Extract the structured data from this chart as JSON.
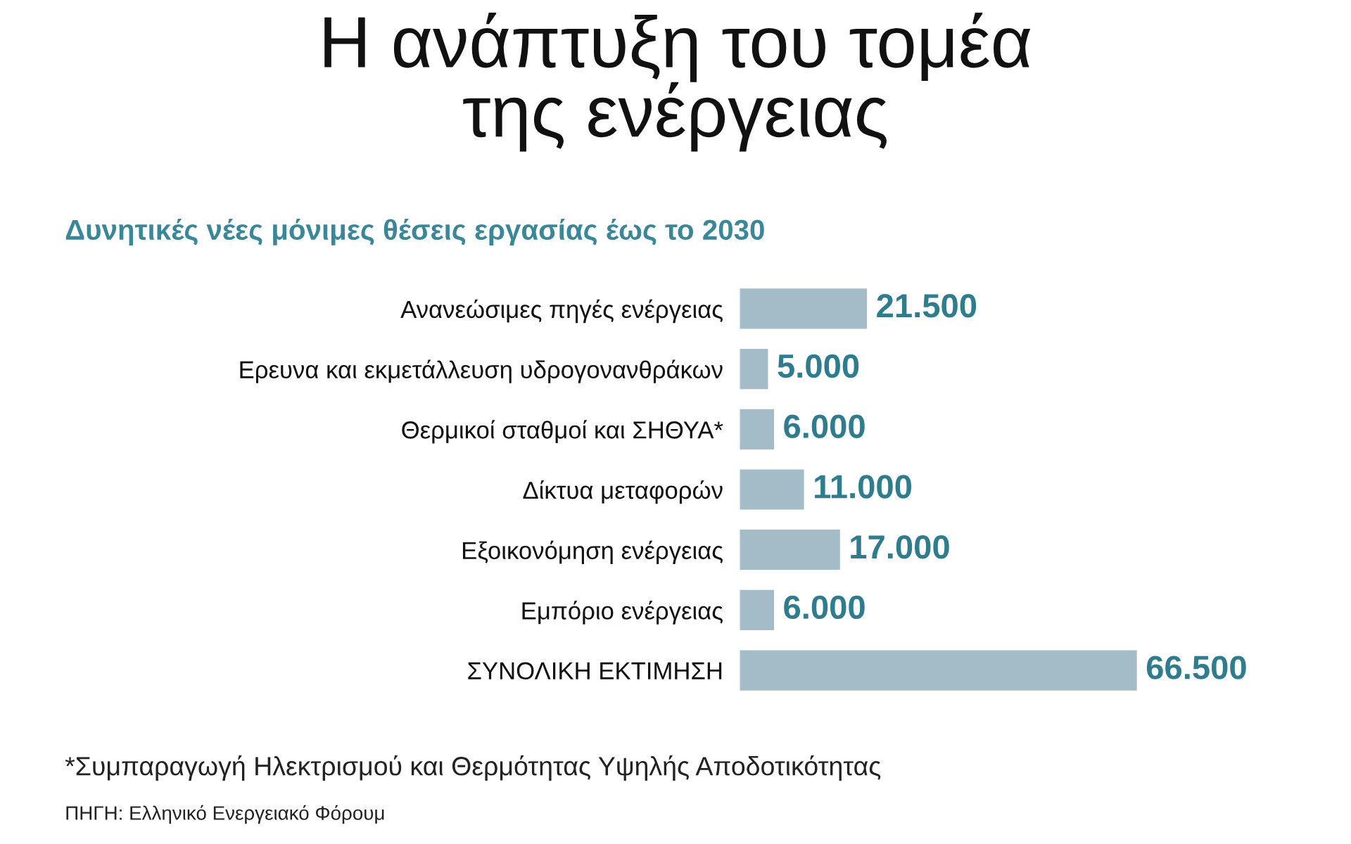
{
  "chart_data": {
    "type": "bar",
    "orientation": "horizontal",
    "title": "Η ανάπτυξη του τομέα\nτης ενέργειας",
    "subtitle": "Δυνητικές νέες μόνιμες θέσεις εργασίας έως το 2030",
    "categories": [
      "Ανανεώσιμες πηγές ενέργειας",
      "Ερευνα και εκμετάλλευση υδρογονανθράκων",
      "Θερμικοί σταθμοί και ΣΗΘΥΑ*",
      "Δίκτυα μεταφορών",
      "Εξοικονόμηση ενέργειας",
      "Εμπόριο ενέργειας",
      "ΣΥΝΟΛΙΚΗ ΕΚΤΙΜΗΣΗ"
    ],
    "values": [
      21500,
      5000,
      6000,
      11000,
      17000,
      6000,
      66500
    ],
    "value_labels": [
      "21.500",
      "5.000",
      "6.000",
      "11.000",
      "17.000",
      "6.000",
      "66.500"
    ],
    "color": "#a3bcc8",
    "annotations": [
      "*Συμπαραγωγή Ηλεκτρισμού και Θερμότητας Υψηλής Αποδοτικότητας",
      "ΠΗΓΗ: Ελληνικό Ενεργειακό Φόρουμ"
    ]
  }
}
